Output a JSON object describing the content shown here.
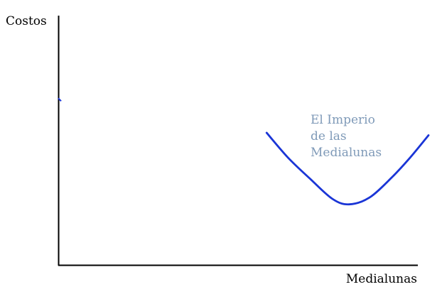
{
  "chart_data": {
    "type": "line",
    "ylabel": "Costos",
    "xlabel": "Medialunas",
    "grid": false,
    "axes_ticks": false,
    "xlim": [
      0,
      100
    ],
    "ylim": [
      0,
      100
    ],
    "series": [
      {
        "name": "El Imperio de las Medialunas",
        "label_lines": [
          "El Imperio",
          "de las",
          "Medialunas"
        ],
        "color": "#1a35d6",
        "label_color": "#7f9ab8",
        "x": [
          56.2,
          62,
          68,
          74,
          78.5,
          84,
          90,
          95,
          100
        ],
        "y": [
          53.0,
          43.0,
          34.5,
          26.5,
          24.3,
          27.0,
          35.0,
          43.0,
          52.0
        ]
      }
    ],
    "y_axis_marker": {
      "y": 66.3,
      "color": "#1a35d6"
    }
  }
}
